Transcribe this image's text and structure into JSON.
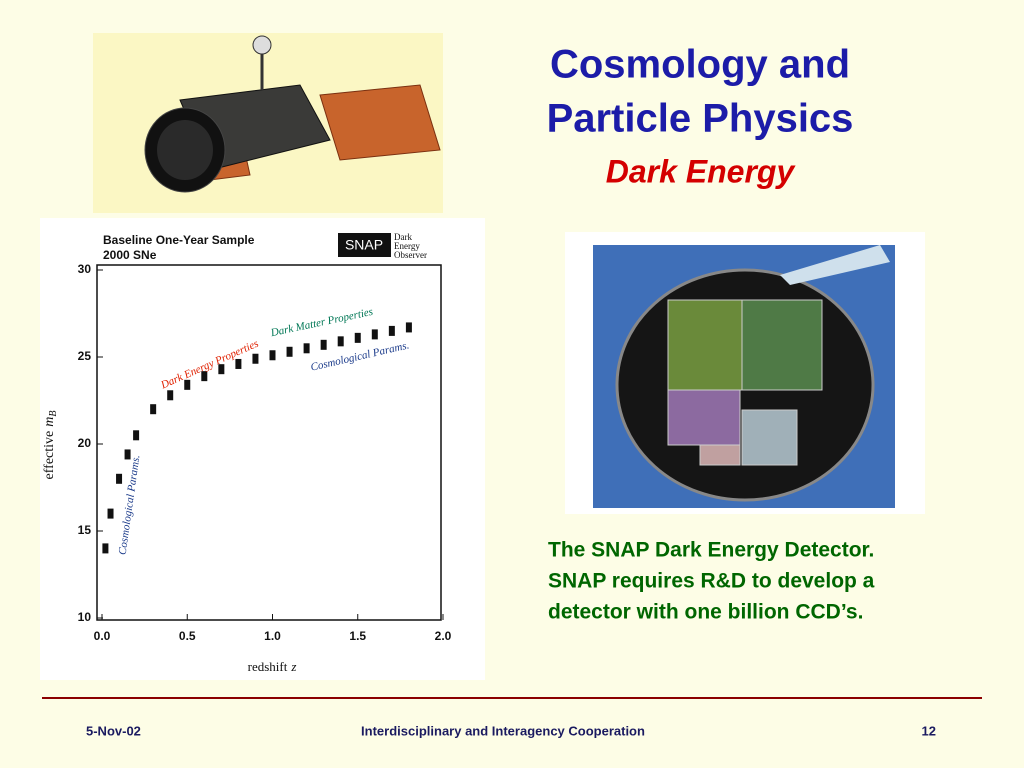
{
  "slide": {
    "title_line1": "Cosmology and",
    "title_line2": "Particle Physics",
    "subtitle": "Dark Energy",
    "caption": [
      "The SNAP Dark Energy Detector.",
      "SNAP requires R&D to develop a",
      "detector with one billion CCD’s."
    ],
    "footer": {
      "date": "5-Nov-02",
      "center": "Interdisciplinary and Interagency Cooperation",
      "page": "12"
    }
  },
  "figure": {
    "header_line1": "Baseline One-Year Sample",
    "header_line2": "2000 SNe",
    "logo": "SNAP",
    "logo_text": [
      "Dark",
      "Energy",
      "Observer"
    ],
    "chart_data": {
      "type": "scatter",
      "xlabel": "redshift",
      "xlabel_symbol": "z",
      "ylabel": "effective",
      "ylabel_symbol": "m",
      "ylabel_sub": "B",
      "xlim": [
        0,
        2
      ],
      "ylim": [
        10,
        30
      ],
      "xticks": [
        {
          "value": 0,
          "label": "0.0"
        },
        {
          "value": 0.5,
          "label": "0.5"
        },
        {
          "value": 1,
          "label": "1.0"
        },
        {
          "value": 1.5,
          "label": "1.5"
        },
        {
          "value": 2,
          "label": "2.0"
        }
      ],
      "yticks": [
        10,
        15,
        20,
        25,
        30
      ],
      "annotations": [
        "Dark Energy Properties",
        "Dark Matter Properties",
        "Cosmological Params.",
        "Cosmological Params."
      ],
      "series": [
        {
          "color": "#111111",
          "x": [
            0.02,
            0.05,
            0.1,
            0.15,
            0.2,
            0.3,
            0.4,
            0.5,
            0.6,
            0.7,
            0.8,
            0.9,
            1.0,
            1.1,
            1.2,
            1.3,
            1.4,
            1.5,
            1.6,
            1.7,
            1.8
          ],
          "values": [
            14,
            16,
            18,
            19.4,
            20.5,
            22,
            22.8,
            23.4,
            23.9,
            24.3,
            24.6,
            24.9,
            25.1,
            25.3,
            25.5,
            25.7,
            25.9,
            26.1,
            26.3,
            26.5,
            26.7
          ]
        }
      ]
    }
  }
}
